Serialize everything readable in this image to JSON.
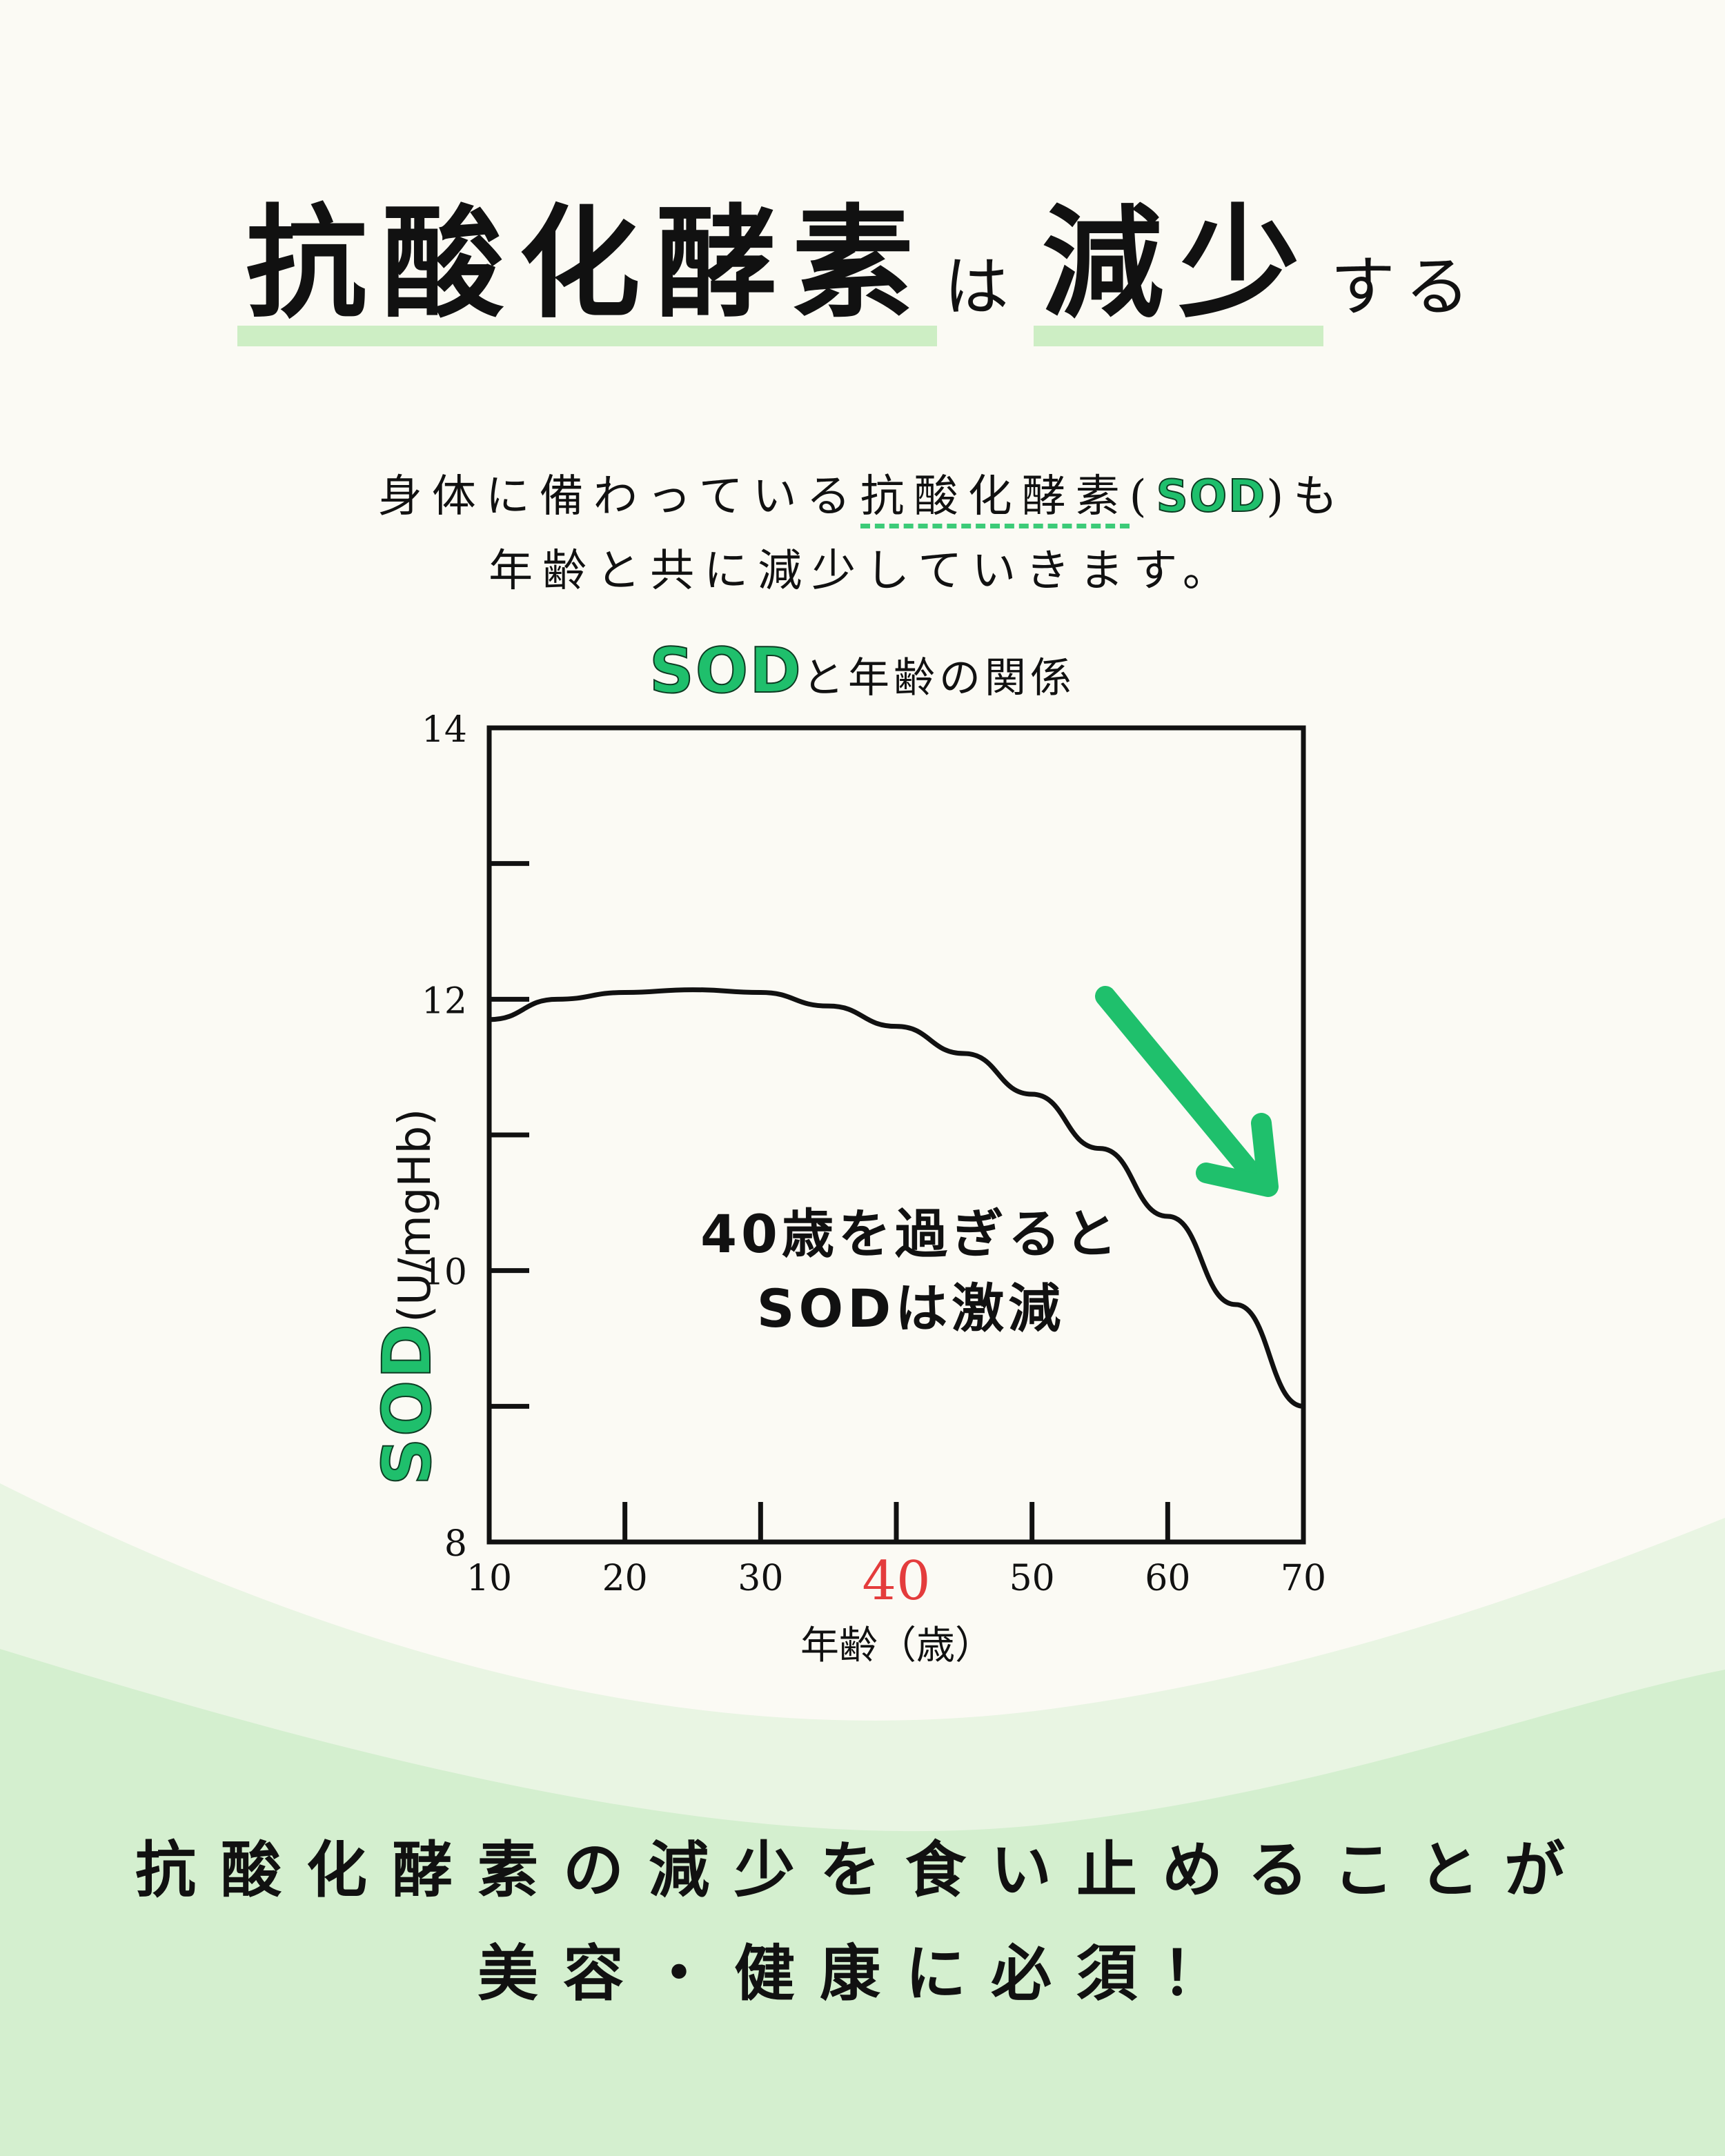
{
  "headline": {
    "part1": "抗酸化酵素",
    "part2": "は",
    "part3": "減少",
    "part4": "する"
  },
  "intro": {
    "line1_pre": "身体に備わっている",
    "line1_term": "抗酸化酵素",
    "line1_paren_open": "(",
    "line1_sod": "SOD",
    "line1_paren_close": ")も",
    "line2": "年齢と共に減少していきます。"
  },
  "chart_title": {
    "sod": "SOD",
    "rest": "と年齢の関係"
  },
  "colors": {
    "accent_green": "#1fbf6c",
    "highlight_red": "#e43c3c",
    "underline_green": "#cdeec4"
  },
  "chart_data": {
    "type": "line",
    "x": [
      10,
      15,
      20,
      25,
      30,
      35,
      40,
      45,
      50,
      55,
      60,
      65,
      70
    ],
    "series": [
      {
        "values": [
          11.85,
          12.0,
          12.05,
          12.07,
          12.05,
          11.95,
          11.8,
          11.6,
          11.3,
          10.9,
          10.4,
          9.75,
          9.0
        ]
      }
    ],
    "xlim": [
      10,
      70
    ],
    "ylim": [
      8,
      14
    ],
    "x_ticks": [
      "10",
      "20",
      "30",
      "40",
      "50",
      "60",
      "70"
    ],
    "y_ticks": [
      "8",
      "10",
      "12",
      "14"
    ],
    "highlight_tick": "40",
    "xlabel": "年齢（歳）",
    "ylabel_sod": "SOD",
    "ylabel_unit": "(U/mgHb)",
    "annotation_line1": "40歳を過ぎると",
    "annotation_line2": "SODは激減",
    "arrow_icon": "down-right-arrow-icon"
  },
  "bottom": {
    "line1": "抗酸化酵素の減少を食い止めることが",
    "line2": "美容・健康に必須！"
  }
}
